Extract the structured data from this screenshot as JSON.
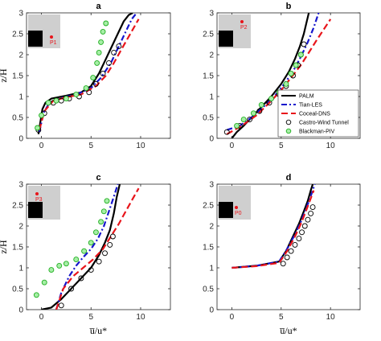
{
  "chart_data": [
    {
      "panel": "a",
      "title": "a",
      "type": "line",
      "xlim": [
        -1.5,
        13
      ],
      "ylim": [
        0,
        3
      ],
      "xticks": [
        0,
        5,
        10
      ],
      "yticks": [
        0,
        0.5,
        1,
        1.5,
        2,
        2.5,
        3
      ],
      "xlabel": "",
      "ylabel": "z/H",
      "inset": {
        "probe": "P1"
      },
      "series": [
        {
          "name": "PALM",
          "x": [
            -0.3,
            -0.1,
            0.1,
            0.4,
            1.0,
            2.5,
            4.0,
            5.0,
            5.8,
            6.5,
            7.2,
            7.8,
            8.3,
            8.8,
            9.2
          ],
          "y": [
            0.1,
            0.4,
            0.7,
            0.85,
            0.95,
            1.02,
            1.1,
            1.25,
            1.55,
            1.9,
            2.25,
            2.55,
            2.8,
            2.95,
            3.0
          ]
        },
        {
          "name": "Tian-LES",
          "x": [
            -0.2,
            0.2,
            0.8,
            2.0,
            3.5,
            5.0,
            6.0,
            7.0,
            7.8,
            8.5,
            9.1,
            9.6
          ],
          "y": [
            0.15,
            0.6,
            0.85,
            0.97,
            1.05,
            1.2,
            1.45,
            1.8,
            2.2,
            2.55,
            2.85,
            3.0
          ]
        },
        {
          "name": "Coceal-DNS",
          "x": [
            -0.2,
            0.3,
            1.2,
            2.5,
            4.0,
            5.5,
            6.5,
            7.3,
            8.0,
            8.6,
            9.2,
            9.8
          ],
          "y": [
            0.2,
            0.65,
            0.9,
            0.98,
            1.05,
            1.25,
            1.5,
            1.8,
            2.1,
            2.35,
            2.6,
            2.85
          ]
        },
        {
          "name": "Castro-Wind Tunnel",
          "x": [
            -0.3,
            0.3,
            1.2,
            2.0,
            2.8,
            3.8,
            4.8,
            5.5,
            6.2,
            6.8,
            7.3,
            7.8
          ],
          "y": [
            0.2,
            0.6,
            0.85,
            0.9,
            0.95,
            1.0,
            1.1,
            1.3,
            1.55,
            1.8,
            2.05,
            2.2
          ]
        },
        {
          "name": "Blackman-PIV",
          "x": [
            -0.4,
            0.0,
            0.7,
            1.5,
            2.5,
            3.5,
            4.5,
            5.2,
            5.6,
            5.8,
            6.0,
            6.2,
            6.5
          ],
          "y": [
            0.25,
            0.55,
            0.85,
            0.9,
            0.95,
            1.05,
            1.2,
            1.45,
            1.8,
            2.05,
            2.3,
            2.55,
            2.75
          ]
        }
      ]
    },
    {
      "panel": "b",
      "title": "b",
      "type": "line",
      "xlim": [
        -1.5,
        13
      ],
      "ylim": [
        0,
        3
      ],
      "xticks": [
        0,
        5,
        10
      ],
      "yticks": [
        0,
        0.5,
        1,
        1.5,
        2,
        2.5,
        3
      ],
      "xlabel": "",
      "ylabel": "",
      "inset": {
        "probe": "P2"
      },
      "series": [
        {
          "name": "PALM",
          "x": [
            0.0,
            0.5,
            1.2,
            2.0,
            3.0,
            4.0,
            5.0,
            5.8,
            6.4,
            6.9,
            7.3,
            7.6,
            7.8
          ],
          "y": [
            0.0,
            0.15,
            0.3,
            0.5,
            0.75,
            1.0,
            1.3,
            1.6,
            1.9,
            2.2,
            2.5,
            2.8,
            3.0
          ]
        },
        {
          "name": "Tian-LES",
          "x": [
            -0.5,
            0.8,
            2.0,
            3.2,
            4.3,
            5.3,
            6.2,
            7.0,
            7.7,
            8.3,
            8.8
          ],
          "y": [
            0.2,
            0.3,
            0.5,
            0.75,
            1.0,
            1.3,
            1.6,
            1.95,
            2.3,
            2.65,
            3.0
          ]
        },
        {
          "name": "Coceal-DNS",
          "x": [
            -0.5,
            1.0,
            2.5,
            3.8,
            5.0,
            6.0,
            7.0,
            7.8,
            8.6,
            9.3,
            10.0
          ],
          "y": [
            0.1,
            0.3,
            0.55,
            0.85,
            1.15,
            1.45,
            1.75,
            2.05,
            2.35,
            2.6,
            2.85
          ]
        },
        {
          "name": "Castro-Wind Tunnel",
          "x": [
            -0.5,
            0.8,
            1.8,
            2.8,
            3.8,
            4.8,
            5.5,
            6.2,
            6.7,
            7.0,
            7.3
          ],
          "y": [
            0.15,
            0.3,
            0.45,
            0.65,
            0.85,
            1.05,
            1.25,
            1.5,
            1.75,
            2.0,
            2.25
          ]
        },
        {
          "name": "Blackman-PIV",
          "x": [
            0.5,
            1.2,
            2.2,
            3.0,
            4.0,
            4.8,
            5.5,
            6.0,
            6.5,
            7.0
          ],
          "y": [
            0.3,
            0.45,
            0.6,
            0.8,
            0.95,
            1.1,
            1.3,
            1.55,
            1.75,
            2.0
          ]
        }
      ]
    },
    {
      "panel": "c",
      "title": "c",
      "type": "line",
      "xlim": [
        -1.5,
        13
      ],
      "ylim": [
        0,
        3
      ],
      "xticks": [
        0,
        5,
        10
      ],
      "yticks": [
        0,
        0.5,
        1,
        1.5,
        2,
        2.5,
        3
      ],
      "xlabel": "u̅/u*",
      "ylabel": "z/H",
      "inset": {
        "probe": "P3"
      },
      "series": [
        {
          "name": "PALM",
          "x": [
            0.0,
            1.0,
            2.0,
            3.0,
            4.0,
            5.0,
            5.8,
            6.4,
            6.9,
            7.3,
            7.6,
            7.9
          ],
          "y": [
            0.0,
            0.05,
            0.25,
            0.5,
            0.75,
            1.0,
            1.3,
            1.6,
            1.9,
            2.3,
            2.7,
            3.0
          ]
        },
        {
          "name": "Tian-LES",
          "x": [
            1.5,
            2.0,
            2.8,
            3.5,
            4.2,
            5.0,
            5.7,
            6.3,
            6.8,
            7.3,
            7.7
          ],
          "y": [
            0.0,
            0.4,
            0.8,
            1.05,
            1.25,
            1.45,
            1.7,
            2.0,
            2.35,
            2.7,
            3.0
          ]
        },
        {
          "name": "Coceal-DNS",
          "x": [
            1.5,
            2.2,
            3.2,
            4.2,
            5.2,
            6.2,
            7.0,
            7.8,
            8.5,
            9.2,
            9.8
          ],
          "y": [
            0.0,
            0.5,
            0.8,
            1.0,
            1.2,
            1.45,
            1.75,
            2.05,
            2.35,
            2.65,
            2.9
          ]
        },
        {
          "name": "Castro-Wind Tunnel",
          "x": [
            2.0,
            3.0,
            4.0,
            5.0,
            5.8,
            6.4,
            6.9,
            7.2
          ],
          "y": [
            0.1,
            0.5,
            0.75,
            0.95,
            1.15,
            1.35,
            1.55,
            1.75
          ]
        },
        {
          "name": "Blackman-PIV",
          "x": [
            -0.5,
            0.3,
            1.0,
            1.8,
            2.5,
            3.5,
            4.3,
            5.0,
            5.5,
            6.0,
            6.3,
            6.6
          ],
          "y": [
            0.35,
            0.65,
            0.95,
            1.05,
            1.1,
            1.2,
            1.4,
            1.6,
            1.85,
            2.1,
            2.35,
            2.6
          ]
        }
      ]
    },
    {
      "panel": "d",
      "title": "d",
      "type": "line",
      "xlim": [
        -1.5,
        13
      ],
      "ylim": [
        0,
        3
      ],
      "xticks": [
        0,
        5,
        10
      ],
      "yticks": [
        0,
        0.5,
        1,
        1.5,
        2,
        2.5,
        3
      ],
      "xlabel": "u̅/u*",
      "ylabel": "",
      "inset": {
        "probe": "P0"
      },
      "series": [
        {
          "name": "PALM",
          "x": [
            0.0,
            2.5,
            4.8,
            5.5,
            6.2,
            6.8,
            7.3,
            7.7,
            8.0,
            8.2
          ],
          "y": [
            1.0,
            1.05,
            1.15,
            1.4,
            1.75,
            2.05,
            2.35,
            2.6,
            2.85,
            3.0
          ]
        },
        {
          "name": "Tian-LES",
          "x": [
            0.0,
            2.5,
            4.8,
            5.6,
            6.4,
            7.0,
            7.5,
            7.9,
            8.2,
            8.4
          ],
          "y": [
            1.0,
            1.05,
            1.15,
            1.45,
            1.8,
            2.1,
            2.4,
            2.65,
            2.85,
            3.0
          ]
        },
        {
          "name": "Coceal-DNS",
          "x": [
            0.0,
            2.5,
            4.8,
            5.6,
            6.4,
            7.0,
            7.5,
            7.9,
            8.3
          ],
          "y": [
            1.0,
            1.04,
            1.12,
            1.4,
            1.75,
            2.05,
            2.35,
            2.6,
            2.85
          ]
        },
        {
          "name": "Castro-Wind Tunnel",
          "x": [
            5.2,
            5.6,
            6.0,
            6.4,
            6.8,
            7.1,
            7.4,
            7.7,
            8.0,
            8.2
          ],
          "y": [
            1.1,
            1.25,
            1.4,
            1.55,
            1.7,
            1.85,
            2.0,
            2.15,
            2.3,
            2.45
          ]
        }
      ]
    }
  ],
  "legend": {
    "panel": "b",
    "placement": "bottom-right",
    "entries": [
      "PALM",
      "Tian-LES",
      "Coceal-DNS",
      "Castro-Wind Tunnel",
      "Blackman-PIV"
    ]
  },
  "styles": {
    "PALM": {
      "color": "#000000",
      "dash": "",
      "marker": "none"
    },
    "Tian-LES": {
      "color": "#1515cc",
      "dash": "7,3,2,3",
      "marker": "none"
    },
    "Coceal-DNS": {
      "color": "#e8141a",
      "dash": "8,4",
      "marker": "none"
    },
    "Castro-Wind Tunnel": {
      "color": "#000000",
      "dash": "",
      "marker": "open-circle"
    },
    "Blackman-PIV": {
      "color": "#40c040",
      "dash": "",
      "marker": "green-circle"
    }
  },
  "inset_colors": {
    "background": "#cfcfcf",
    "building": "#000000",
    "probe": "#e8141a"
  }
}
